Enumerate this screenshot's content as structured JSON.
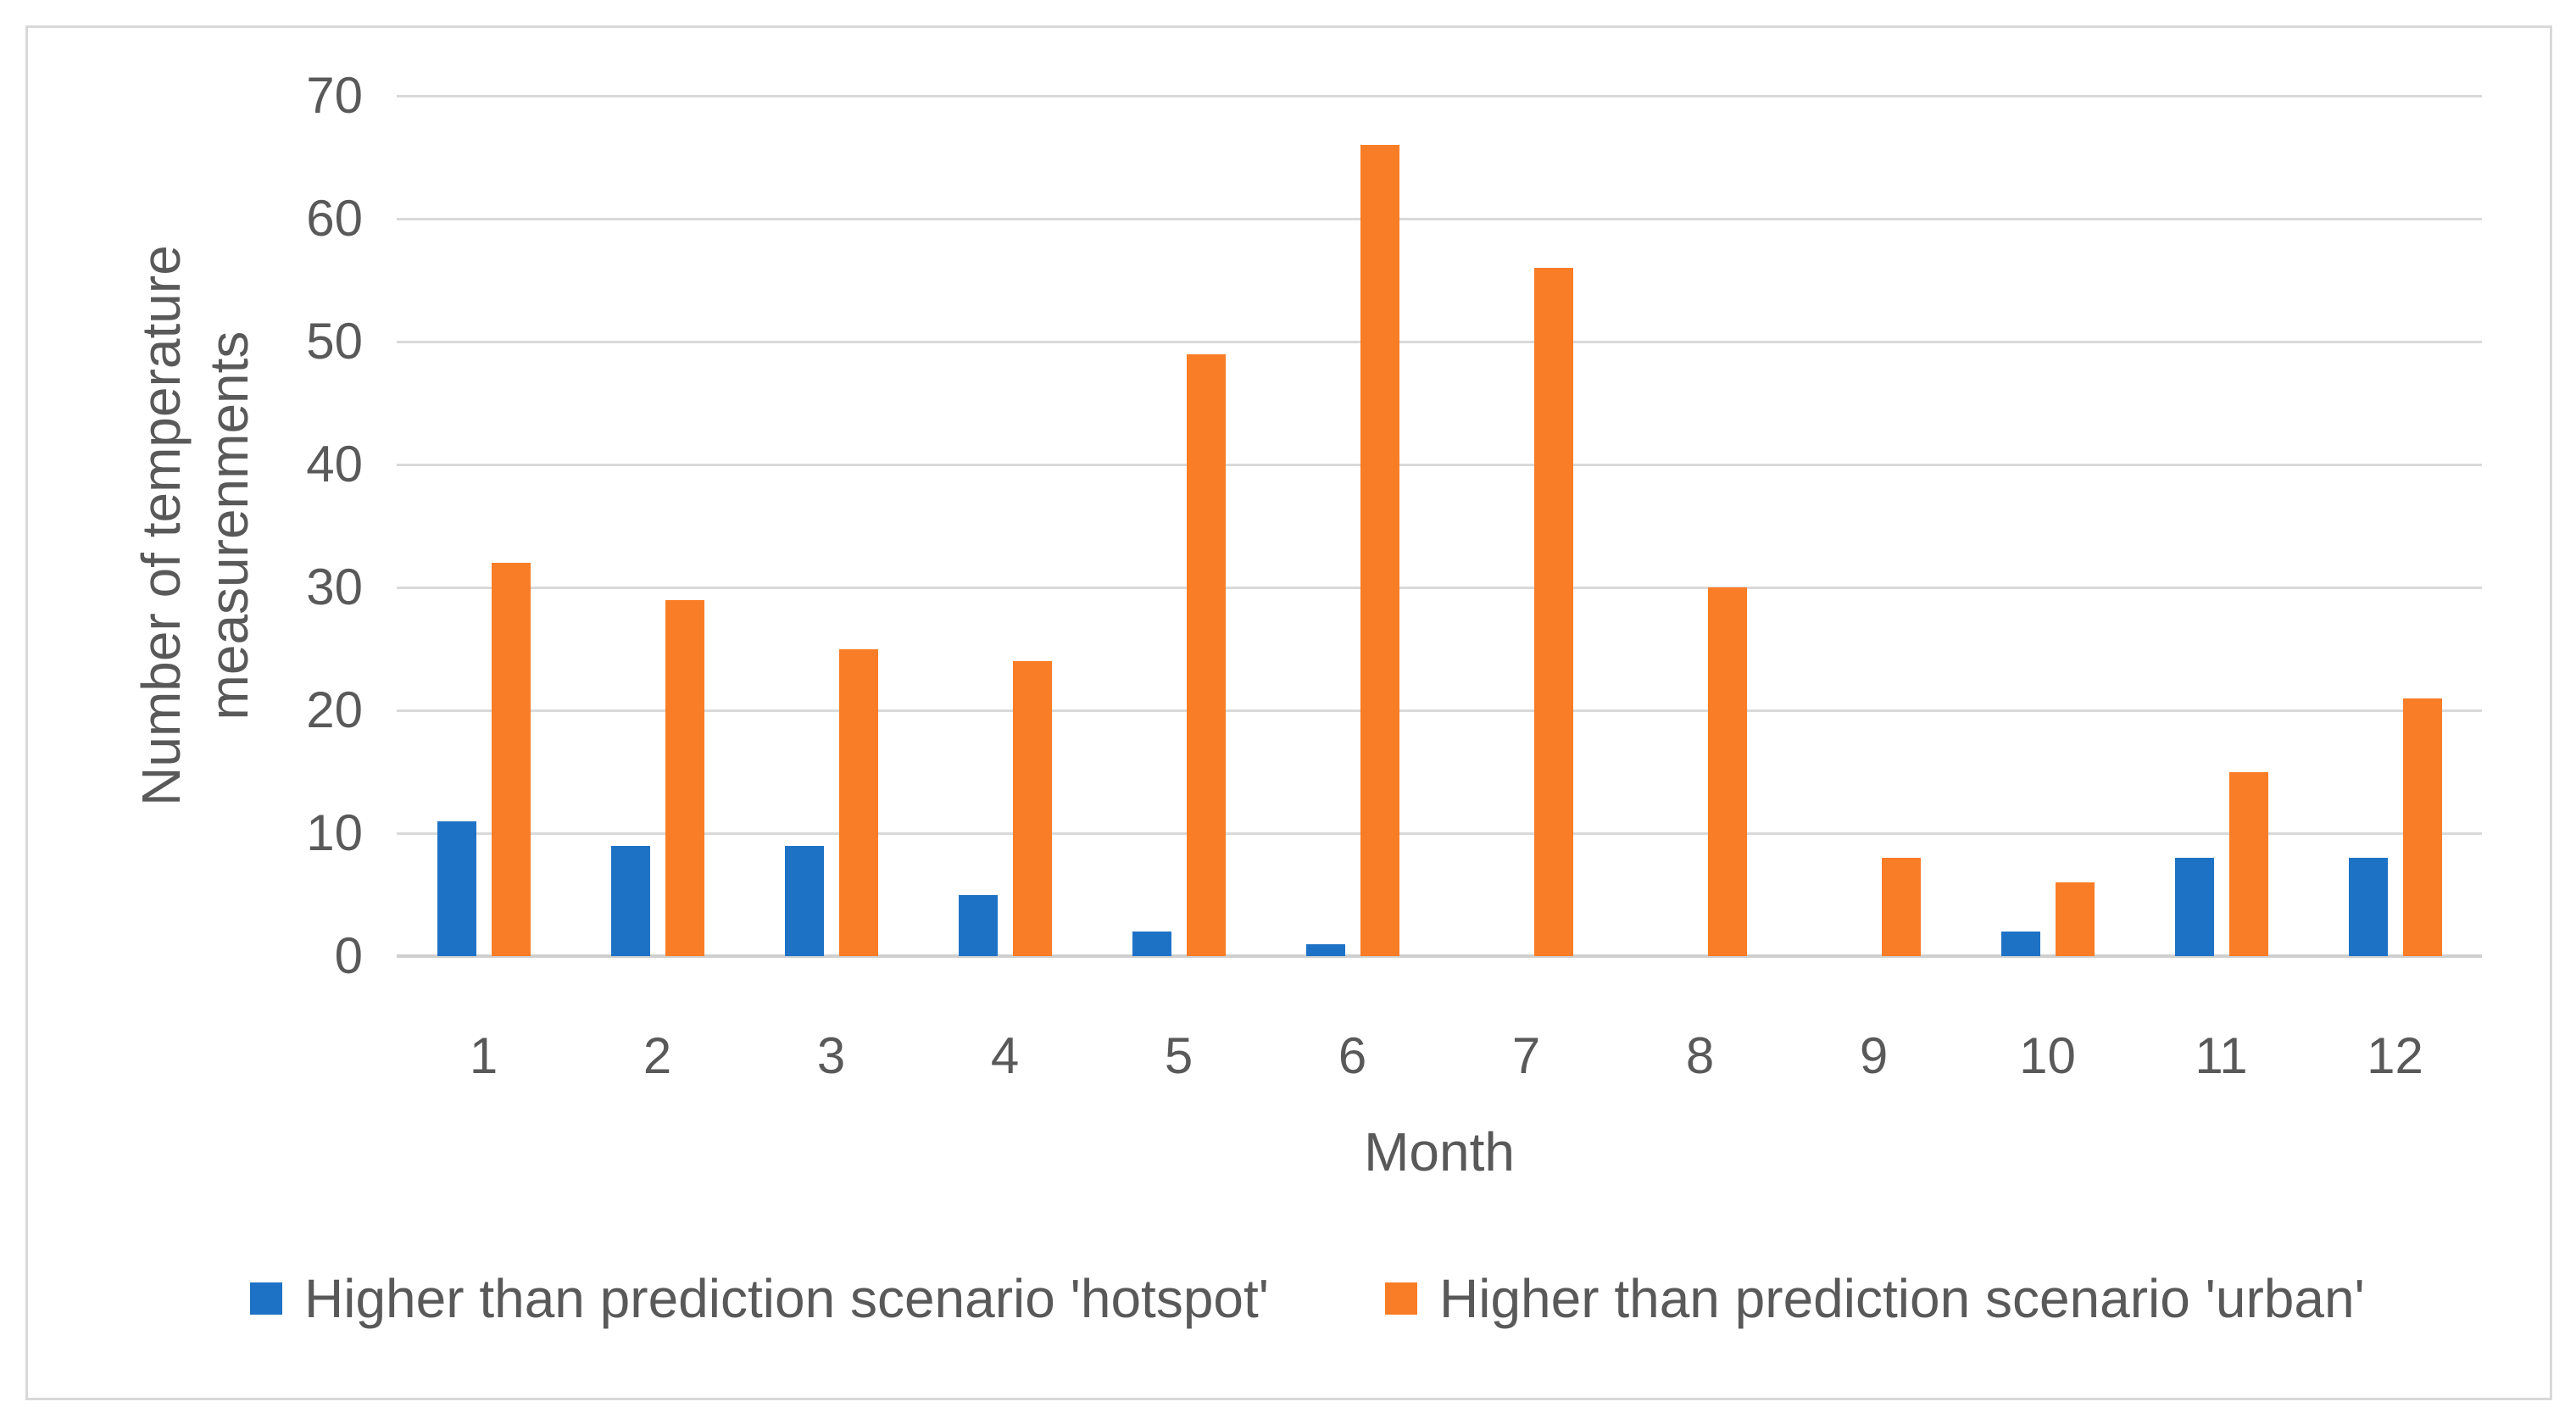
{
  "chart_data": {
    "type": "bar",
    "categories": [
      "1",
      "2",
      "3",
      "4",
      "5",
      "6",
      "7",
      "8",
      "9",
      "10",
      "11",
      "12"
    ],
    "series": [
      {
        "name": "Higher than prediction scenario 'hotspot'",
        "color": "#1e72c6",
        "values": [
          11,
          9,
          9,
          5,
          2,
          1,
          0,
          0,
          0,
          2,
          8,
          8
        ]
      },
      {
        "name": "Higher than prediction scenario 'urban'",
        "color": "#f97d26",
        "values": [
          32,
          29,
          25,
          24,
          49,
          66,
          56,
          30,
          8,
          6,
          15,
          21
        ]
      }
    ],
    "title": "",
    "xlabel": "Month",
    "ylabel_lines": [
      "Number of temperature",
      "measurenments"
    ],
    "ylim": [
      0,
      70
    ],
    "yticks": [
      0,
      10,
      20,
      30,
      40,
      50,
      60,
      70
    ],
    "grid": true,
    "legend_position": "bottom"
  },
  "colors": {
    "grid": "#d9d9d9",
    "zero_axis": "#cfcfcf",
    "frame": "#d9d9d9",
    "text": "#595959",
    "background": "#ffffff"
  }
}
